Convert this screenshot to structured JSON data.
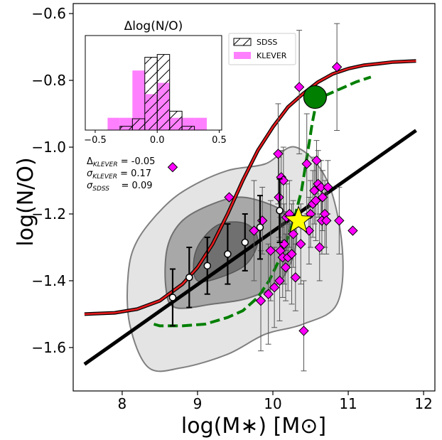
{
  "chart_data": [
    {
      "type": "scatter",
      "xlabel": "log(M∗) [M⊙]",
      "ylabel": "log(N/O)",
      "xlim": [
        7.35,
        12.15
      ],
      "ylim": [
        -1.73,
        -0.57
      ],
      "xticks": [
        8,
        9,
        10,
        11,
        12
      ],
      "yticks": [
        -1.6,
        -1.4,
        -1.2,
        -1.0,
        -0.8,
        -0.6
      ],
      "xtick_labels": [
        "8",
        "9",
        "10",
        "11",
        "12"
      ],
      "ytick_labels": [
        "−1.6",
        "−1.4",
        "−1.2",
        "−1.0",
        "−0.8",
        "−0.6"
      ],
      "grid": false,
      "stats": {
        "line1": "ΔKLEVER = -0.05",
        "line2": "σKLEVER = 0.17",
        "line3": "σSDSS    = 0.09",
        "d_sym": "Δ",
        "d_sub": "KLEVER",
        "d_val": " = -0.05",
        "sk_sym": "σ",
        "sk_sub": "KLEVER",
        "sk_val": " = 0.17",
        "ss_sym": "σ",
        "ss_sub": "SDSS",
        "ss_val": "    = 0.09"
      },
      "colors": {
        "klever": "#ff00ff",
        "red_curve": "#e41a1c",
        "green_curve": "#007f00",
        "black_line": "#000000",
        "star": "#ffff00",
        "contour_light": "#e4e4e4",
        "contour_mid": "#a8a8a8",
        "contour_dark": "#707070"
      },
      "black_line": {
        "x": [
          7.5,
          11.9
        ],
        "y": [
          -1.65,
          -0.95
        ]
      },
      "red_curve": {
        "x": [
          7.5,
          7.9,
          8.2,
          8.5,
          8.8,
          9.0,
          9.2,
          9.4,
          9.6,
          9.8,
          10.0,
          10.2,
          10.4,
          10.6,
          10.8,
          11.0,
          11.2,
          11.4,
          11.6,
          11.9
        ],
        "y": [
          -1.5,
          -1.496,
          -1.485,
          -1.46,
          -1.41,
          -1.36,
          -1.29,
          -1.2,
          -1.1,
          -1.01,
          -0.94,
          -0.88,
          -0.84,
          -0.805,
          -0.78,
          -0.765,
          -0.755,
          -0.75,
          -0.745,
          -0.742
        ]
      },
      "green_curve": {
        "x": [
          8.42,
          8.5,
          8.8,
          9.1,
          9.4,
          9.6,
          9.8,
          9.95,
          10.1,
          10.2,
          10.3,
          10.38,
          10.43,
          10.48,
          10.52,
          10.56,
          10.62,
          10.7,
          10.8,
          10.95,
          11.1,
          11.3
        ],
        "y": [
          -1.53,
          -1.535,
          -1.535,
          -1.53,
          -1.51,
          -1.49,
          -1.45,
          -1.4,
          -1.33,
          -1.27,
          -1.2,
          -1.13,
          -1.06,
          -0.99,
          -0.93,
          -0.885,
          -0.86,
          -0.845,
          -0.835,
          -0.82,
          -0.805,
          -0.79
        ]
      },
      "sdss_binned": {
        "x": [
          8.67,
          8.89,
          9.13,
          9.4,
          9.63,
          9.83,
          10.09
        ],
        "y": [
          -1.45,
          -1.39,
          -1.355,
          -1.32,
          -1.285,
          -1.24,
          -1.19
        ],
        "err": [
          0.085,
          0.09,
          0.085,
          0.09,
          0.085,
          0.095,
          0.095
        ]
      },
      "klever": {
        "x": [
          8.67,
          9.42,
          9.75,
          9.84,
          9.86,
          9.94,
          9.97,
          10.02,
          10.07,
          10.08,
          10.09,
          10.1,
          10.11,
          10.13,
          10.14,
          10.15,
          10.17,
          10.18,
          10.2,
          10.22,
          10.25,
          10.27,
          10.3,
          10.35,
          10.37,
          10.41,
          10.45,
          10.48,
          10.5,
          10.53,
          10.55,
          10.57,
          10.58,
          10.6,
          10.62,
          10.64,
          10.65,
          10.66,
          10.69,
          10.71,
          10.73,
          10.85,
          10.88,
          11.06
        ],
        "y": [
          -1.06,
          -1.15,
          -1.25,
          -1.46,
          -1.22,
          -1.44,
          -1.31,
          -1.42,
          -1.02,
          -1.15,
          -1.4,
          -1.31,
          -1.09,
          -1.33,
          -1.1,
          -1.29,
          -1.36,
          -1.21,
          -1.33,
          -1.2,
          -1.32,
          -1.26,
          -1.39,
          -0.82,
          -1.29,
          -1.55,
          -1.05,
          -1.25,
          -1.2,
          -1.17,
          -1.13,
          -1.16,
          -1.04,
          -1.11,
          -1.3,
          -1.12,
          -1.22,
          -1.15,
          -1.2,
          -1.22,
          -1.12,
          -0.76,
          -1.22,
          -1.25
        ],
        "err_up": [
          0.0,
          0.0,
          0.15,
          0.15,
          0.1,
          0.15,
          0.15,
          0.12,
          0.15,
          0.12,
          0.12,
          0.1,
          0.08,
          0.12,
          0.1,
          0.12,
          0.1,
          0.1,
          0.1,
          0.1,
          0.15,
          0.1,
          0.1,
          0.17,
          0.12,
          0.15,
          0.15,
          0.1,
          0.1,
          0.1,
          0.1,
          0.12,
          0.06,
          0.1,
          0.1,
          0.08,
          0.1,
          0.08,
          0.1,
          0.1,
          0.08,
          0.13,
          0.1,
          0.0
        ],
        "err_dn": [
          0.0,
          0.0,
          0.15,
          0.15,
          0.1,
          0.15,
          0.15,
          0.12,
          0.15,
          0.12,
          0.12,
          0.1,
          0.15,
          0.12,
          0.1,
          0.12,
          0.1,
          0.1,
          0.1,
          0.1,
          0.15,
          0.1,
          0.1,
          0.2,
          0.12,
          0.12,
          0.15,
          0.1,
          0.1,
          0.1,
          0.1,
          0.12,
          0.1,
          0.1,
          0.1,
          0.08,
          0.1,
          0.1,
          0.1,
          0.1,
          0.08,
          0.19,
          0.1,
          0.0
        ]
      },
      "big_circle": {
        "x": 10.56,
        "y": -0.85
      },
      "star": {
        "x": 10.34,
        "y": -1.22
      },
      "contours": {
        "outer": {
          "x": [
            8.35,
            8.8,
            9.4,
            9.9,
            10.4,
            10.85,
            10.92,
            10.72,
            10.3,
            9.9,
            9.4,
            8.9,
            8.55,
            8.2,
            8.08,
            8.1
          ],
          "y": [
            -1.66,
            -1.66,
            -1.62,
            -1.56,
            -1.53,
            -1.47,
            -1.3,
            -1.1,
            -1.0,
            -1.05,
            -1.07,
            -1.12,
            -1.18,
            -1.28,
            -1.38,
            -1.53
          ]
        },
        "middle": {
          "x": [
            8.7,
            9.2,
            9.7,
            10.1,
            10.3,
            10.27,
            10.05,
            9.6,
            9.2,
            8.8,
            8.6,
            8.58
          ],
          "y": [
            -1.48,
            -1.47,
            -1.45,
            -1.4,
            -1.3,
            -1.22,
            -1.18,
            -1.15,
            -1.17,
            -1.22,
            -1.3,
            -1.42
          ]
        },
        "inner": {
          "x": [
            9.0,
            9.3,
            9.65,
            9.8,
            9.65,
            9.3,
            9.05,
            8.95
          ],
          "y": [
            -1.4,
            -1.39,
            -1.35,
            -1.28,
            -1.23,
            -1.23,
            -1.28,
            -1.34
          ]
        }
      }
    },
    {
      "type": "bar",
      "title": "Δlog(N/O)",
      "xlim": [
        -0.58,
        0.52
      ],
      "ylim": [
        0,
        1.0
      ],
      "xticks": [
        -0.5,
        0.0,
        0.5
      ],
      "xtick_labels": [
        "−0.5",
        "0.0",
        "0.5"
      ],
      "bin_edges": [
        -0.4,
        -0.3,
        -0.2,
        -0.1,
        0.0,
        0.1,
        0.2,
        0.3,
        0.4
      ],
      "series": [
        {
          "name": "SDSS",
          "values": [
            0.0,
            0.04,
            0.12,
            0.77,
            0.8,
            0.2,
            0.04,
            0.0
          ]
        },
        {
          "name": "KLEVER",
          "values": [
            0.13,
            0.13,
            0.63,
            0.38,
            0.5,
            0.13,
            0.13,
            0.13
          ]
        }
      ],
      "legend": {
        "placement": "right-of-inset",
        "sdss_label": "SDSS",
        "klever_label": "KLEVER"
      }
    }
  ]
}
